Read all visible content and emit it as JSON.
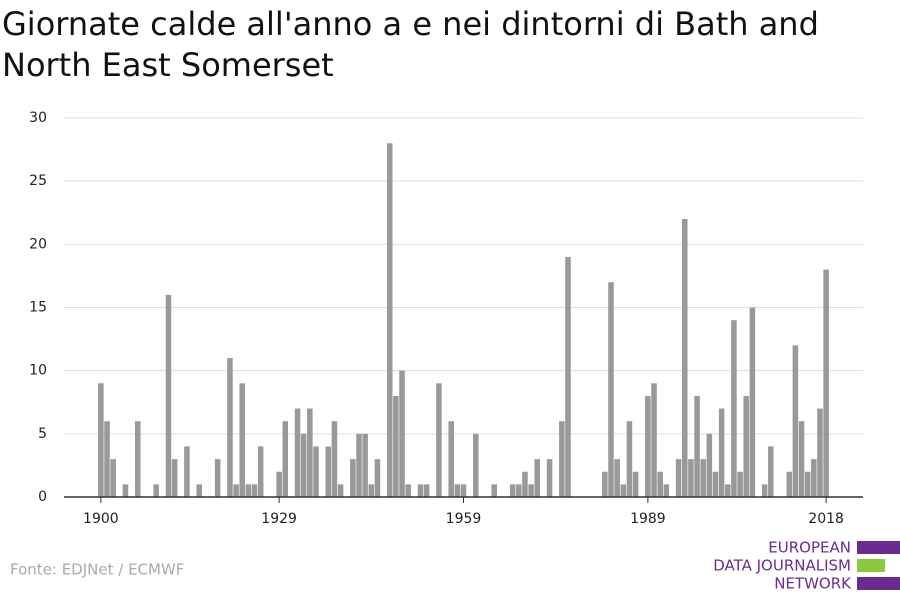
{
  "chart_data": {
    "type": "bar",
    "title": [
      "Giornate calde all'anno a e nei dintorni di Bath and",
      "North East Somerset"
    ],
    "source": "Fonte: EDJNet / ECMWF",
    "logo": [
      "EUROPEAN",
      "DATA JOURNALISM",
      "NETWORK"
    ],
    "color": "#999999",
    "grid": true,
    "x": [
      1900,
      1901,
      1902,
      1903,
      1904,
      1905,
      1906,
      1907,
      1908,
      1909,
      1910,
      1911,
      1912,
      1913,
      1914,
      1915,
      1916,
      1917,
      1918,
      1919,
      1920,
      1921,
      1922,
      1923,
      1924,
      1925,
      1926,
      1927,
      1928,
      1929,
      1930,
      1931,
      1932,
      1933,
      1934,
      1935,
      1936,
      1937,
      1938,
      1939,
      1940,
      1941,
      1942,
      1943,
      1944,
      1945,
      1946,
      1947,
      1948,
      1949,
      1950,
      1951,
      1952,
      1953,
      1954,
      1955,
      1956,
      1957,
      1958,
      1959,
      1960,
      1961,
      1962,
      1963,
      1964,
      1965,
      1966,
      1967,
      1968,
      1969,
      1970,
      1971,
      1972,
      1973,
      1974,
      1975,
      1976,
      1977,
      1978,
      1979,
      1980,
      1981,
      1982,
      1983,
      1984,
      1985,
      1986,
      1987,
      1988,
      1989,
      1990,
      1991,
      1992,
      1993,
      1994,
      1995,
      1996,
      1997,
      1998,
      1999,
      2000,
      2001,
      2002,
      2003,
      2004,
      2005,
      2006,
      2007,
      2008,
      2009,
      2010,
      2011,
      2012,
      2013,
      2014,
      2015,
      2016,
      2017,
      2018
    ],
    "values": [
      9,
      6,
      3,
      0,
      1,
      0,
      6,
      0,
      0,
      1,
      0,
      16,
      3,
      0,
      4,
      0,
      1,
      0,
      0,
      3,
      0,
      11,
      1,
      9,
      1,
      1,
      4,
      0,
      0,
      2,
      6,
      0,
      7,
      5,
      7,
      4,
      0,
      4,
      6,
      1,
      0,
      3,
      5,
      5,
      1,
      3,
      0,
      28,
      8,
      10,
      1,
      0,
      1,
      1,
      0,
      9,
      0,
      6,
      1,
      1,
      0,
      5,
      0,
      0,
      1,
      0,
      0,
      1,
      1,
      2,
      1,
      3,
      0,
      3,
      0,
      6,
      19,
      0,
      0,
      0,
      0,
      0,
      2,
      17,
      3,
      1,
      6,
      2,
      0,
      8,
      9,
      2,
      1,
      0,
      3,
      22,
      3,
      8,
      3,
      5,
      2,
      7,
      1,
      14,
      2,
      8,
      15,
      0,
      1,
      4,
      0,
      0,
      2,
      12,
      6,
      2,
      3,
      7,
      18
    ],
    "xlim": [
      1894,
      2024
    ],
    "xticks": [
      1900,
      1929,
      1959,
      1989,
      2018
    ],
    "ylim": [
      0,
      30
    ],
    "yticks": [
      0,
      5,
      10,
      15,
      20,
      25,
      30
    ]
  }
}
